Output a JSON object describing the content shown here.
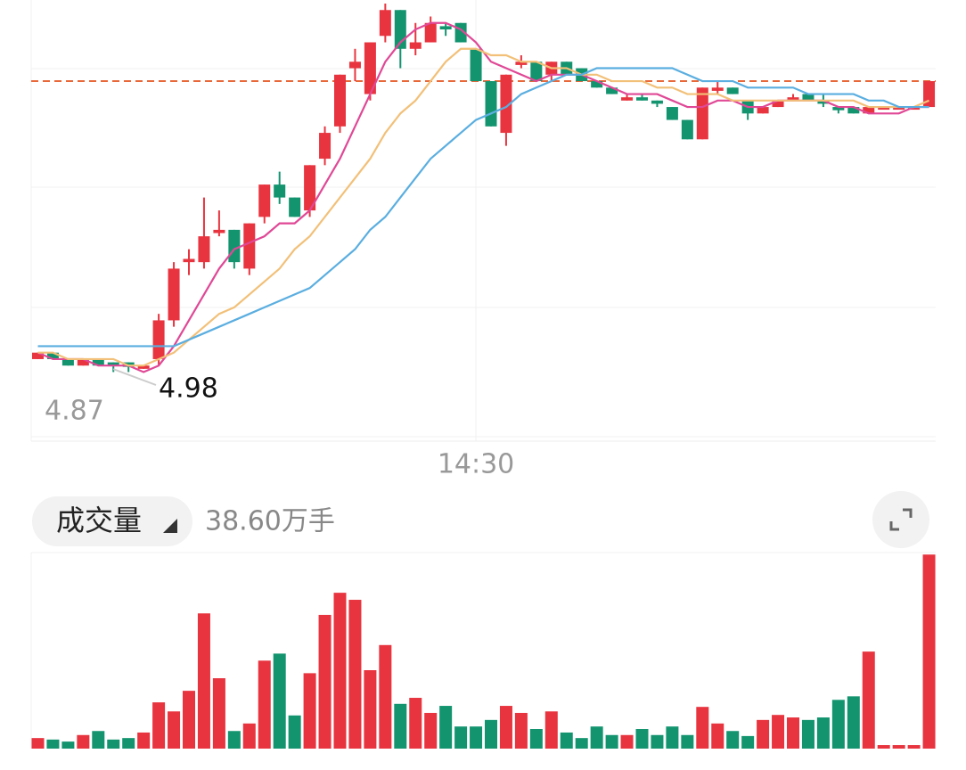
{
  "chart_data": [
    {
      "type": "candlestick",
      "categories": [
        null,
        null,
        null,
        null,
        null,
        null,
        null,
        null,
        null,
        null,
        null,
        null,
        null,
        null,
        null,
        null,
        null,
        null,
        null,
        null,
        null,
        null,
        null,
        null,
        null,
        null,
        null,
        null,
        null,
        null,
        null,
        null,
        null,
        null,
        null,
        null,
        null,
        null,
        null,
        null,
        null,
        null,
        null,
        null,
        null,
        null,
        null,
        null,
        null,
        null,
        null,
        null,
        null,
        null,
        null,
        null,
        null,
        null,
        null,
        null
      ],
      "open": [
        4.99,
        5.0,
        4.99,
        4.98,
        4.99,
        4.985,
        4.985,
        4.975,
        4.99,
        5.05,
        5.14,
        5.14,
        5.185,
        5.19,
        5.13,
        5.21,
        5.26,
        5.24,
        5.22,
        5.3,
        5.35,
        5.44,
        5.4,
        5.49,
        5.53,
        5.47,
        5.48,
        5.505,
        5.51,
        5.47,
        5.42,
        5.34,
        5.445,
        5.45,
        5.43,
        5.45,
        5.44,
        5.42,
        5.41,
        5.39,
        5.395,
        5.39,
        5.38,
        5.36,
        5.33,
        5.405,
        5.41,
        5.39,
        5.37,
        5.38,
        5.39,
        5.4,
        5.39,
        5.38,
        5.38,
        5.37,
        5.38,
        5.38,
        5.38,
        5.38
      ],
      "close": [
        5.0,
        4.99,
        4.98,
        4.99,
        4.98,
        4.98,
        4.978,
        4.98,
        5.05,
        5.13,
        5.145,
        5.18,
        5.19,
        5.14,
        5.2,
        5.26,
        5.24,
        5.21,
        5.29,
        5.34,
        5.43,
        5.45,
        5.48,
        5.53,
        5.47,
        5.48,
        5.51,
        5.5,
        5.48,
        5.42,
        5.35,
        5.43,
        5.45,
        5.42,
        5.45,
        5.43,
        5.42,
        5.41,
        5.4,
        5.395,
        5.39,
        5.385,
        5.36,
        5.33,
        5.41,
        5.41,
        5.4,
        5.37,
        5.38,
        5.39,
        5.395,
        5.39,
        5.385,
        5.375,
        5.37,
        5.38,
        5.38,
        5.38,
        5.38,
        5.42
      ],
      "high": [
        5.0,
        5.0,
        4.99,
        4.99,
        4.99,
        4.985,
        4.985,
        4.98,
        5.06,
        5.14,
        5.16,
        5.24,
        5.22,
        5.19,
        5.2,
        5.26,
        5.28,
        5.24,
        5.29,
        5.35,
        5.43,
        5.47,
        5.48,
        5.54,
        5.53,
        5.51,
        5.52,
        5.51,
        5.51,
        5.47,
        5.42,
        5.43,
        5.46,
        5.45,
        5.45,
        5.45,
        5.44,
        5.42,
        5.41,
        5.4,
        5.4,
        5.39,
        5.38,
        5.36,
        5.41,
        5.42,
        5.41,
        5.39,
        5.38,
        5.39,
        5.4,
        5.4,
        5.4,
        5.38,
        5.38,
        5.38,
        5.38,
        5.38,
        5.38,
        5.42
      ],
      "low": [
        4.99,
        4.99,
        4.98,
        4.98,
        4.98,
        4.97,
        4.97,
        4.975,
        4.98,
        5.04,
        5.12,
        5.13,
        5.18,
        5.13,
        5.12,
        5.2,
        5.23,
        5.21,
        5.21,
        5.29,
        5.34,
        5.42,
        5.39,
        5.48,
        5.44,
        5.46,
        5.48,
        5.49,
        5.48,
        5.42,
        5.35,
        5.32,
        5.44,
        5.42,
        5.42,
        5.43,
        5.42,
        5.41,
        5.4,
        5.39,
        5.39,
        5.38,
        5.36,
        5.33,
        5.33,
        5.4,
        5.4,
        5.36,
        5.37,
        5.38,
        5.39,
        5.39,
        5.38,
        5.37,
        5.37,
        5.37,
        5.38,
        5.38,
        5.38,
        5.38
      ],
      "up_color": "#e8343f",
      "down_color": "#13946f",
      "series": [
        {
          "color": "#e04896",
          "values": [
            5.0,
            4.99,
            4.99,
            4.99,
            4.98,
            4.98,
            4.98,
            4.97,
            4.98,
            5.01,
            5.05,
            5.09,
            5.13,
            5.16,
            5.17,
            5.18,
            5.2,
            5.2,
            5.22,
            5.26,
            5.3,
            5.35,
            5.4,
            5.45,
            5.48,
            5.5,
            5.51,
            5.51,
            5.5,
            5.48,
            5.45,
            5.44,
            5.43,
            5.42,
            5.43,
            5.43,
            5.43,
            5.42,
            5.41,
            5.4,
            5.4,
            5.4,
            5.39,
            5.38,
            5.38,
            5.39,
            5.39,
            5.38,
            5.38,
            5.39,
            5.39,
            5.39,
            5.39,
            5.38,
            5.38,
            5.37,
            5.37,
            5.37,
            5.38,
            5.38
          ]
        },
        {
          "color": "#f2c078",
          "values": [
            5.0,
            5.0,
            4.99,
            4.99,
            4.99,
            4.99,
            4.98,
            4.98,
            4.99,
            5.0,
            5.02,
            5.04,
            5.06,
            5.07,
            5.09,
            5.11,
            5.13,
            5.16,
            5.18,
            5.21,
            5.24,
            5.27,
            5.3,
            5.34,
            5.37,
            5.39,
            5.42,
            5.45,
            5.47,
            5.47,
            5.46,
            5.46,
            5.45,
            5.45,
            5.44,
            5.44,
            5.43,
            5.43,
            5.42,
            5.42,
            5.42,
            5.41,
            5.41,
            5.4,
            5.4,
            5.4,
            5.39,
            5.39,
            5.39,
            5.39,
            5.39,
            5.39,
            5.39,
            5.39,
            5.39,
            5.38,
            5.38,
            5.38,
            5.38,
            5.39
          ]
        },
        {
          "color": "#5aaee0",
          "values": [
            5.01,
            5.01,
            5.01,
            5.01,
            5.01,
            5.01,
            5.01,
            5.01,
            5.01,
            5.01,
            5.02,
            5.03,
            5.04,
            5.05,
            5.06,
            5.07,
            5.08,
            5.09,
            5.1,
            5.12,
            5.14,
            5.16,
            5.19,
            5.21,
            5.24,
            5.27,
            5.3,
            5.32,
            5.34,
            5.36,
            5.37,
            5.38,
            5.4,
            5.41,
            5.42,
            5.43,
            5.43,
            5.44,
            5.44,
            5.44,
            5.44,
            5.44,
            5.44,
            5.43,
            5.42,
            5.42,
            5.42,
            5.41,
            5.41,
            5.41,
            5.41,
            5.4,
            5.4,
            5.4,
            5.4,
            5.39,
            5.39,
            5.38,
            5.38,
            5.38
          ]
        }
      ],
      "reference_line": 5.42,
      "low_marker": 4.98,
      "ylim": [
        4.87,
        5.54
      ],
      "yticks": [
        4.87
      ],
      "xticks": [
        {
          "value": 29,
          "label": "14:30"
        }
      ]
    },
    {
      "type": "bar",
      "title": "成交量",
      "subtitle": "38.60万手",
      "values": [
        2.1,
        1.8,
        1.4,
        2.7,
        3.5,
        1.8,
        2.1,
        3.2,
        9.2,
        7.4,
        11.5,
        26.9,
        14.0,
        3.5,
        5.0,
        17.5,
        18.9,
        6.6,
        15.0,
        26.6,
        31.0,
        29.6,
        15.6,
        20.6,
        8.9,
        10.1,
        7.1,
        8.5,
        4.4,
        4.4,
        5.7,
        8.5,
        7.1,
        3.9,
        7.4,
        3.2,
        2.1,
        4.4,
        2.7,
        2.7,
        3.9,
        2.7,
        4.4,
        2.7,
        8.3,
        5.0,
        3.5,
        2.5,
        5.7,
        6.7,
        6.2,
        5.7,
        6.2,
        9.7,
        10.4,
        19.3,
        0.7,
        0.7,
        0.7,
        38.6
      ],
      "ylim": [
        0,
        39
      ]
    }
  ]
}
